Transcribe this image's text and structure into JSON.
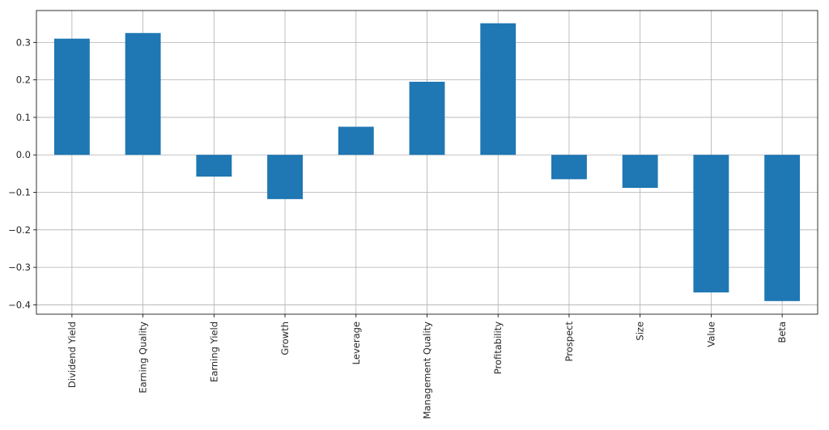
{
  "chart_data": {
    "type": "bar",
    "title": "",
    "xlabel": "",
    "ylabel": "",
    "categories": [
      "Dividend Yield",
      "Earning Quality",
      "Earning Yield",
      "Growth",
      "Leverage",
      "Management Quality",
      "Profitability",
      "Prospect",
      "Size",
      "Value",
      "Beta"
    ],
    "values": [
      0.31,
      0.325,
      -0.058,
      -0.118,
      0.075,
      0.195,
      0.351,
      -0.065,
      -0.088,
      -0.367,
      -0.39
    ],
    "ylim": [
      -0.425,
      0.385
    ],
    "yticks": [
      -0.4,
      -0.3,
      -0.2,
      -0.1,
      0.0,
      0.1,
      0.2,
      0.3
    ],
    "ytick_labels": [
      "−0.4",
      "−0.3",
      "−0.2",
      "−0.1",
      "0.0",
      "0.1",
      "0.2",
      "0.3"
    ],
    "grid": true,
    "bar_color": "#1f77b4",
    "grid_color": "#b0b0b0"
  }
}
